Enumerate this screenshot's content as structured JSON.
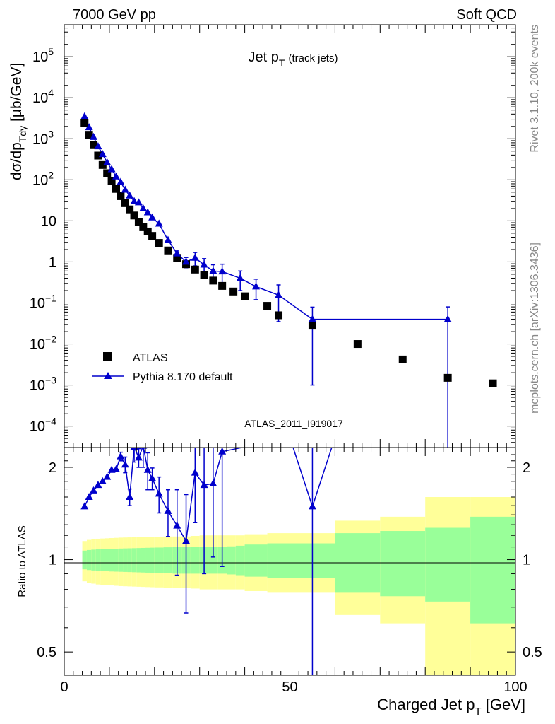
{
  "header": {
    "left": "7000 GeV pp",
    "right": "Soft QCD"
  },
  "side_labels": {
    "version": "Rivet 3.1.10,  200k events",
    "source": "mcplots.cern.ch [arXiv:1306.3436]"
  },
  "colors": {
    "mc": "#0000cc",
    "data": "#000000",
    "band_inner": "#99ff99",
    "band_outer": "#ffff99",
    "analysis_label": "#999999"
  },
  "chart_data": [
    {
      "type": "scatter",
      "panel": "main",
      "title": "Jet p_T (track jets)",
      "title_parts": {
        "main": "Jet p",
        "sub": "T",
        "suffix": "(track jets)"
      },
      "ylabel": "dσ/dp_Tdy [μb/GeV]",
      "ylabel_parts": {
        "a": "dσ/dp",
        "sub": "Tdy",
        "b": " [μb/GeV]"
      },
      "yscale": "log",
      "xlim": [
        0,
        100
      ],
      "ylim": [
        3e-05,
        600000.0
      ],
      "ytick_labels": [
        {
          "value": 0.0001,
          "mant": "10",
          "exp": "−4"
        },
        {
          "value": 0.001,
          "mant": "10",
          "exp": "−3"
        },
        {
          "value": 0.01,
          "mant": "10",
          "exp": "−2"
        },
        {
          "value": 0.1,
          "mant": "10",
          "exp": "−1"
        },
        {
          "value": 1,
          "mant": "1",
          "exp": ""
        },
        {
          "value": 10,
          "mant": "10",
          "exp": ""
        },
        {
          "value": 100,
          "mant": "10",
          "exp": "2"
        },
        {
          "value": 1000,
          "mant": "10",
          "exp": "3"
        },
        {
          "value": 10000,
          "mant": "10",
          "exp": "4"
        },
        {
          "value": 100000,
          "mant": "10",
          "exp": "5"
        }
      ],
      "analysis_label": "ATLAS_2011_I919017",
      "legend": {
        "position": "bottom-left",
        "entries": [
          "ATLAS",
          "Pythia 8.170 default"
        ]
      },
      "series": [
        {
          "name": "ATLAS",
          "marker": "square",
          "x": [
            4.5,
            5.5,
            6.5,
            7.5,
            8.5,
            9.5,
            10.5,
            11.5,
            12.5,
            13.5,
            14.5,
            15.5,
            16.5,
            17.5,
            18.5,
            19.5,
            21,
            23,
            25,
            27,
            29,
            31,
            33,
            35,
            37.5,
            40,
            45,
            47.5,
            55,
            65,
            75,
            85,
            95
          ],
          "y": [
            2400,
            1250,
            700,
            390,
            230,
            145,
            92,
            60,
            40,
            27,
            19,
            13.5,
            9.5,
            7,
            5.5,
            4.3,
            2.9,
            1.9,
            1.25,
            0.88,
            0.65,
            0.48,
            0.35,
            0.26,
            0.19,
            0.145,
            0.085,
            0.05,
            0.028,
            0.01,
            0.0042,
            0.0015,
            0.0011
          ]
        },
        {
          "name": "Pythia 8.170 default",
          "marker": "triangle",
          "x": [
            4.5,
            5.5,
            6.5,
            7.5,
            8.5,
            9.5,
            10.5,
            11.5,
            12.5,
            13.5,
            14.5,
            15.5,
            16.5,
            17.5,
            18.5,
            19.5,
            21,
            23,
            25,
            27,
            29,
            31,
            33,
            35,
            39,
            42.5,
            47.5,
            55,
            85
          ],
          "y": [
            3500,
            1900,
            1100,
            650,
            420,
            265,
            180,
            120,
            88,
            57,
            41,
            30,
            28,
            20,
            16,
            12,
            8.5,
            3.4,
            1.6,
            1.0,
            1.25,
            0.85,
            0.6,
            0.58,
            0.4,
            0.25,
            0.155,
            0.04,
            0.04
          ],
          "yerr": [
            0,
            0,
            0,
            0,
            0,
            0,
            0,
            0,
            0,
            0,
            0,
            0,
            0,
            0,
            0,
            0,
            0,
            0,
            0.25,
            0.28,
            0.45,
            0.35,
            0.25,
            0.3,
            0.2,
            0.13,
            0.12,
            0.039,
            0.04
          ]
        }
      ]
    },
    {
      "type": "line",
      "panel": "ratio",
      "ylabel": "Ratio to ATLAS",
      "xlabel": "Charged Jet p_T [GeV]",
      "xlabel_parts": {
        "a": "Charged Jet p",
        "sub": "T",
        "b": " [GeV]"
      },
      "xlim": [
        0,
        100
      ],
      "ylim": [
        0.42,
        2.32
      ],
      "xtick_labels": [
        "0",
        "50",
        "100"
      ],
      "ytick_labels": [
        "0.5",
        "1",
        "2"
      ],
      "reference": 1,
      "band_edges": [
        4,
        5,
        6,
        7,
        8,
        9,
        10,
        11,
        12,
        13,
        14,
        15,
        16,
        17,
        18,
        19,
        20,
        22,
        24,
        26,
        28,
        30,
        32,
        34,
        36,
        38,
        40,
        45,
        50,
        60,
        70,
        80,
        90,
        100
      ],
      "band_inner": [
        0.07,
        0.075,
        0.078,
        0.08,
        0.082,
        0.083,
        0.085,
        0.086,
        0.087,
        0.088,
        0.089,
        0.09,
        0.091,
        0.092,
        0.093,
        0.094,
        0.095,
        0.097,
        0.1,
        0.1,
        0.1,
        0.1,
        0.1,
        0.1,
        0.105,
        0.11,
        0.12,
        0.13,
        0.13,
        0.22,
        0.24,
        0.27,
        0.38
      ],
      "band_outer": [
        0.15,
        0.16,
        0.165,
        0.17,
        0.172,
        0.174,
        0.176,
        0.178,
        0.18,
        0.181,
        0.182,
        0.183,
        0.184,
        0.185,
        0.186,
        0.187,
        0.188,
        0.19,
        0.19,
        0.19,
        0.195,
        0.2,
        0.2,
        0.2,
        0.2,
        0.2,
        0.21,
        0.22,
        0.22,
        0.34,
        0.38,
        0.6,
        0.6
      ],
      "series": [
        {
          "name": "Pythia 8.170 default",
          "x": [
            4.5,
            5.5,
            6.5,
            7.5,
            8.5,
            9.5,
            10.5,
            11.5,
            12.5,
            13.5,
            14.5,
            15.5,
            16.5,
            17.5,
            18.5,
            19.5,
            21,
            23,
            25,
            27,
            29,
            31,
            33,
            35,
            50,
            55,
            60
          ],
          "y": [
            1.49,
            1.6,
            1.68,
            1.75,
            1.8,
            1.86,
            1.96,
            1.97,
            2.17,
            2.04,
            1.6,
            2.33,
            2.15,
            2.35,
            1.96,
            1.84,
            1.64,
            1.44,
            1.29,
            1.15,
            1.92,
            1.75,
            1.77,
            2.25,
            2.5,
            1.49,
            2.5
          ],
          "yerr_lo": [
            0,
            0,
            0,
            0,
            0,
            0,
            0,
            0,
            0.07,
            0.12,
            0.1,
            0.25,
            0.15,
            0.35,
            0.27,
            0.15,
            0.22,
            0.25,
            0.4,
            0.48,
            0.6,
            0.85,
            0.75,
            1.3,
            0,
            1.5,
            0
          ],
          "yerr_hi": [
            0,
            0,
            0,
            0,
            0,
            0,
            0,
            0,
            0.07,
            0.12,
            0.1,
            0.25,
            0.15,
            0.35,
            0.27,
            0.15,
            0.22,
            0.25,
            0.4,
            0.48,
            0.6,
            0.85,
            0.75,
            1.3,
            0,
            1.5,
            0
          ]
        }
      ]
    }
  ]
}
